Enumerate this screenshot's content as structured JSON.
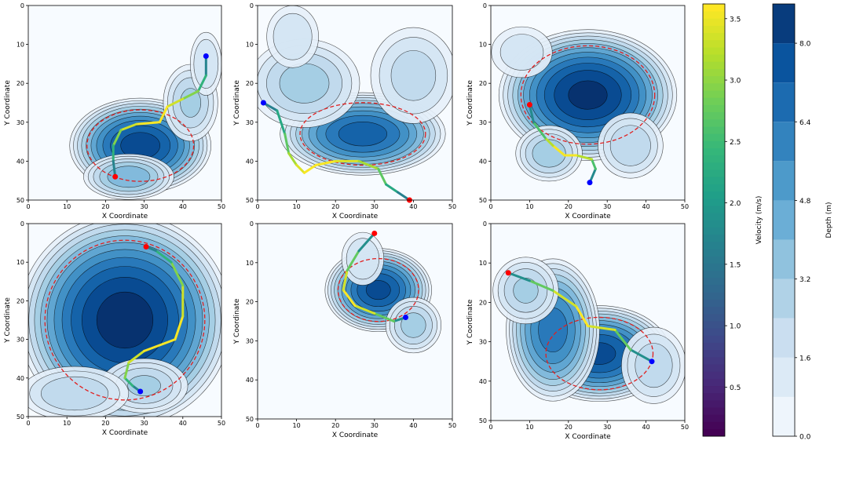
{
  "chart_data": [
    {
      "type": "heatmap",
      "subtype": "depth-contour-with-trajectory",
      "xlabel": "X Coordinate",
      "ylabel": "Y Coordinate",
      "xlim": [
        0,
        50
      ],
      "ylim": [
        50,
        0
      ],
      "xticks": [
        "0",
        "10",
        "20",
        "30",
        "40",
        "50"
      ],
      "yticks": [
        "0",
        "10",
        "20",
        "30",
        "40",
        "50"
      ],
      "blobs": [
        {
          "x": 29,
          "y": 36,
          "rx": 12,
          "ry": 8,
          "peak": 8.2
        },
        {
          "x": 42,
          "y": 25,
          "rx": 5,
          "ry": 7,
          "peak": 3.2
        },
        {
          "x": 46,
          "y": 15,
          "rx": 3,
          "ry": 6,
          "peak": 2.4
        },
        {
          "x": 26,
          "y": 44,
          "rx": 8,
          "ry": 4,
          "peak": 4.5
        }
      ],
      "start": [
        46,
        13
      ],
      "end": [
        22.5,
        44
      ],
      "path": [
        [
          46,
          13
        ],
        [
          46,
          18
        ],
        [
          44,
          22
        ],
        [
          40,
          24
        ],
        [
          36,
          26
        ],
        [
          34,
          30
        ],
        [
          28,
          30.5
        ],
        [
          24,
          32
        ],
        [
          22,
          36
        ],
        [
          22,
          40
        ],
        [
          22.5,
          44
        ]
      ]
    },
    {
      "type": "heatmap",
      "subtype": "depth-contour-with-trajectory",
      "xlabel": "X Coordinate",
      "ylabel": "Y Coordinate",
      "xlim": [
        0,
        50
      ],
      "ylim": [
        50,
        0
      ],
      "xticks": [
        "0",
        "10",
        "20",
        "30",
        "40",
        "50"
      ],
      "yticks": [
        "0",
        "10",
        "20",
        "30",
        "40",
        "50"
      ],
      "blobs": [
        {
          "x": 27,
          "y": 33,
          "rx": 14,
          "ry": 7,
          "peak": 7.4
        },
        {
          "x": 12,
          "y": 20,
          "rx": 10,
          "ry": 8,
          "peak": 3.4
        },
        {
          "x": 9,
          "y": 8,
          "rx": 5,
          "ry": 6,
          "peak": 2.2
        },
        {
          "x": 40,
          "y": 18,
          "rx": 8,
          "ry": 9,
          "peak": 2.6
        }
      ],
      "start": [
        1.5,
        25
      ],
      "end": [
        39,
        50
      ],
      "path": [
        [
          1.5,
          25
        ],
        [
          5,
          27
        ],
        [
          7,
          33
        ],
        [
          8,
          38
        ],
        [
          10,
          41
        ],
        [
          12,
          43
        ],
        [
          15,
          41
        ],
        [
          20,
          40
        ],
        [
          26,
          40
        ],
        [
          31,
          42
        ],
        [
          33,
          46
        ],
        [
          36,
          48
        ],
        [
          39,
          50
        ]
      ]
    },
    {
      "type": "heatmap",
      "subtype": "depth-contour-with-trajectory",
      "xlabel": "X Coordinate",
      "ylabel": "Y Coordinate",
      "xlim": [
        0,
        50
      ],
      "ylim": [
        50,
        0
      ],
      "xticks": [
        "0",
        "10",
        "20",
        "30",
        "40",
        "50"
      ],
      "yticks": [
        "0",
        "10",
        "20",
        "30",
        "40",
        "50"
      ],
      "blobs": [
        {
          "x": 25,
          "y": 23,
          "rx": 15,
          "ry": 11,
          "peak": 8.8
        },
        {
          "x": 15,
          "y": 38,
          "rx": 6,
          "ry": 5,
          "peak": 3.6
        },
        {
          "x": 36,
          "y": 36,
          "rx": 6,
          "ry": 6,
          "peak": 3.0
        },
        {
          "x": 8,
          "y": 12,
          "rx": 6,
          "ry": 5,
          "peak": 2.0
        }
      ],
      "start": [
        25.5,
        45.5
      ],
      "end": [
        10,
        25.5
      ],
      "path": [
        [
          25.5,
          45.5
        ],
        [
          27,
          42
        ],
        [
          26,
          39.5
        ],
        [
          22,
          38.5
        ],
        [
          19,
          38.5
        ],
        [
          16,
          36
        ],
        [
          14,
          34
        ],
        [
          11,
          30
        ],
        [
          10,
          25.5
        ]
      ]
    },
    {
      "type": "heatmap",
      "subtype": "depth-contour-with-trajectory",
      "xlabel": "X Coordinate",
      "ylabel": "Y Coordinate",
      "xlim": [
        0,
        50
      ],
      "ylim": [
        50,
        0
      ],
      "xticks": [
        "0",
        "10",
        "20",
        "30",
        "40",
        "50"
      ],
      "yticks": [
        "0",
        "10",
        "20",
        "30",
        "40",
        "50"
      ],
      "blobs": [
        {
          "x": 25,
          "y": 25,
          "rx": 18,
          "ry": 18,
          "peak": 9.0
        },
        {
          "x": 30,
          "y": 42,
          "rx": 8,
          "ry": 5,
          "peak": 3.2
        },
        {
          "x": 12,
          "y": 44,
          "rx": 10,
          "ry": 5,
          "peak": 3.0
        }
      ],
      "start": [
        29,
        43.5
      ],
      "end": [
        30.5,
        6
      ],
      "path": [
        [
          29,
          43.5
        ],
        [
          27,
          42
        ],
        [
          25,
          40
        ],
        [
          26,
          36
        ],
        [
          30,
          33
        ],
        [
          38,
          30
        ],
        [
          40,
          24
        ],
        [
          40,
          16
        ],
        [
          37,
          10
        ],
        [
          33,
          7
        ],
        [
          30.5,
          6
        ]
      ]
    },
    {
      "type": "heatmap",
      "subtype": "depth-contour-with-trajectory",
      "xlabel": "X Coordinate",
      "ylabel": "Y Coordinate",
      "xlim": [
        0,
        50
      ],
      "ylim": [
        50,
        0
      ],
      "xticks": [
        "0",
        "10",
        "20",
        "30",
        "40",
        "50"
      ],
      "yticks": [
        "0",
        "10",
        "20",
        "30",
        "40",
        "50"
      ],
      "blobs": [
        {
          "x": 31,
          "y": 17,
          "rx": 9,
          "ry": 7,
          "peak": 8.0
        },
        {
          "x": 40,
          "y": 26,
          "rx": 5,
          "ry": 5,
          "peak": 3.4
        },
        {
          "x": 27,
          "y": 9,
          "rx": 4,
          "ry": 5,
          "peak": 2.4
        }
      ],
      "start": [
        38,
        24
      ],
      "end": [
        30,
        2.5
      ],
      "path": [
        [
          38,
          24
        ],
        [
          35,
          25
        ],
        [
          30,
          23
        ],
        [
          25,
          21
        ],
        [
          22,
          17
        ],
        [
          23,
          12
        ],
        [
          26,
          7
        ],
        [
          30,
          2.5
        ]
      ]
    },
    {
      "type": "heatmap",
      "subtype": "depth-contour-with-trajectory",
      "xlabel": "X Coordinate",
      "ylabel": "Y Coordinate",
      "xlim": [
        0,
        50
      ],
      "ylim": [
        50,
        0
      ],
      "xticks": [
        "0",
        "10",
        "20",
        "30",
        "40",
        "50"
      ],
      "yticks": [
        "0",
        "10",
        "20",
        "30",
        "40",
        "50"
      ],
      "blobs": [
        {
          "x": 28,
          "y": 33,
          "rx": 12,
          "ry": 8,
          "peak": 8.0
        },
        {
          "x": 16,
          "y": 27,
          "rx": 8,
          "ry": 12,
          "peak": 6.6
        },
        {
          "x": 9,
          "y": 17,
          "rx": 6,
          "ry": 6,
          "peak": 3.2
        },
        {
          "x": 42,
          "y": 36,
          "rx": 6,
          "ry": 7,
          "peak": 2.8
        }
      ],
      "start": [
        41.5,
        35
      ],
      "end": [
        4.5,
        12.5
      ],
      "path": [
        [
          41.5,
          35
        ],
        [
          36,
          32
        ],
        [
          32,
          27
        ],
        [
          25,
          26
        ],
        [
          22,
          21
        ],
        [
          16,
          17
        ],
        [
          10,
          14.5
        ],
        [
          4.5,
          12.5
        ]
      ]
    },
    {
      "type": "heatmap",
      "subtype": "colorbar",
      "label": "Velocity (m/s)",
      "range": [
        0.1,
        3.62
      ],
      "ticks": [
        "0.5",
        "1.0",
        "1.5",
        "2.0",
        "2.5",
        "3.0",
        "3.5"
      ],
      "tick_values": [
        0.5,
        1.0,
        1.5,
        2.0,
        2.5,
        3.0,
        3.5
      ],
      "colormap": "viridis"
    },
    {
      "type": "heatmap",
      "subtype": "colorbar",
      "label": "Depth (m)",
      "range": [
        0,
        8.8
      ],
      "levels": [
        0,
        0.8,
        1.6,
        2.4,
        3.2,
        4.0,
        4.8,
        5.6,
        6.4,
        7.2,
        8.0,
        8.8
      ],
      "ticks": [
        "0.0",
        "1.6",
        "3.2",
        "4.8",
        "6.4",
        "8.0"
      ],
      "tick_values": [
        0.0,
        1.6,
        3.2,
        4.8,
        6.4,
        8.0
      ],
      "colormap": "Blues"
    }
  ],
  "colors": {
    "start_marker": "#0000ff",
    "end_marker": "#ff0000",
    "safety_contour": "#e02020",
    "contour_line": "#000000",
    "path_low": "#3b528b",
    "path_high": "#fde725"
  }
}
